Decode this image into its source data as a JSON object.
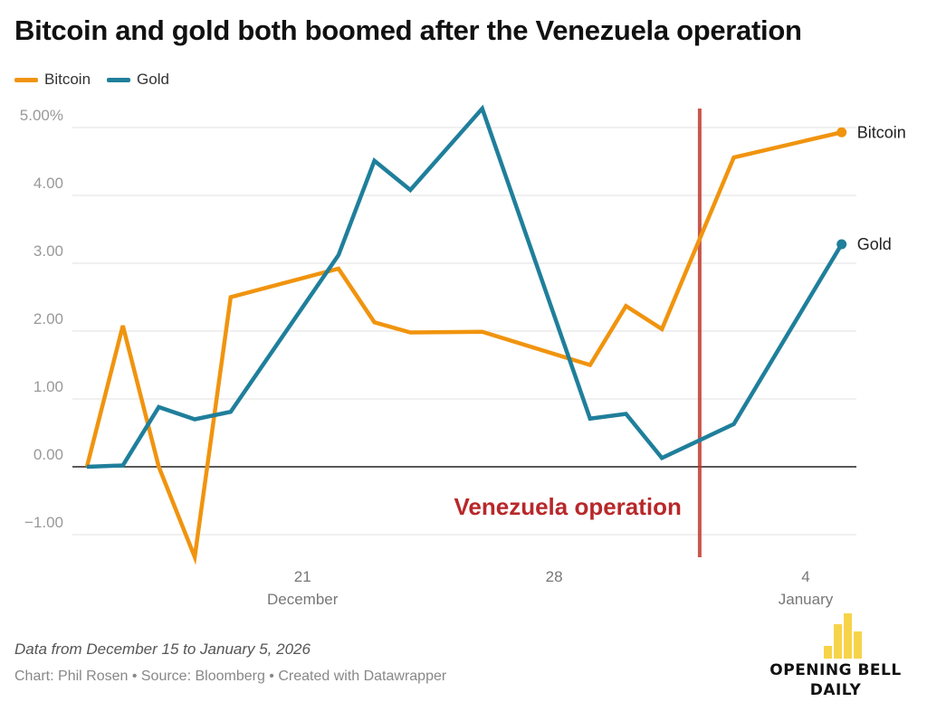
{
  "title": "Bitcoin and gold both boomed after the Venezuela operation",
  "notes": "Data from December 15 to January 5, 2026",
  "byline": "Chart: Phil Rosen • Source: Bloomberg • Created with Datawrapper",
  "logo": {
    "line1": "OPENING BELL",
    "line2": "DAILY"
  },
  "chart_data": {
    "type": "line",
    "title": "Bitcoin and gold both boomed after the Venezuela operation",
    "xlabel": "",
    "ylabel": "",
    "ylim": [
      -1.3,
      5.3
    ],
    "grid": true,
    "legend": "top-left",
    "y_ticks": [
      {
        "value": 5,
        "label": "5.00%"
      },
      {
        "value": 4,
        "label": "4.00"
      },
      {
        "value": 3,
        "label": "3.00"
      },
      {
        "value": 2,
        "label": "2.00"
      },
      {
        "value": 1,
        "label": "1.00"
      },
      {
        "value": 0,
        "label": "0.00"
      },
      {
        "value": -1,
        "label": "−1.00"
      }
    ],
    "x_ticks": [
      {
        "date": "2025-12-21",
        "label": "21",
        "sublabel": "December"
      },
      {
        "date": "2025-12-28",
        "label": "28",
        "sublabel": ""
      },
      {
        "date": "2026-01-04",
        "label": "4",
        "sublabel": "January"
      }
    ],
    "x": [
      "2025-12-15",
      "2025-12-16",
      "2025-12-17",
      "2025-12-18",
      "2025-12-19",
      "2025-12-22",
      "2025-12-23",
      "2025-12-24",
      "2025-12-26",
      "2025-12-29",
      "2025-12-30",
      "2025-12-31",
      "2026-01-02",
      "2026-01-05"
    ],
    "series": [
      {
        "name": "Bitcoin",
        "color": "#f0940f",
        "values": [
          0,
          2.08,
          0,
          -1.33,
          2.5,
          2.92,
          2.13,
          1.98,
          1.99,
          1.5,
          2.37,
          2.03,
          4.56,
          4.93
        ]
      },
      {
        "name": "Gold",
        "color": "#1f7f9b",
        "values": [
          0,
          0.02,
          0.88,
          0.7,
          0.81,
          3.12,
          4.51,
          4.08,
          5.28,
          0.71,
          0.78,
          0.13,
          0.63,
          3.28
        ]
      }
    ],
    "annotations": [
      {
        "type": "vertical-line",
        "date": "2026-01-01",
        "label": "Venezuela operation",
        "color": "#c0392b"
      }
    ]
  }
}
